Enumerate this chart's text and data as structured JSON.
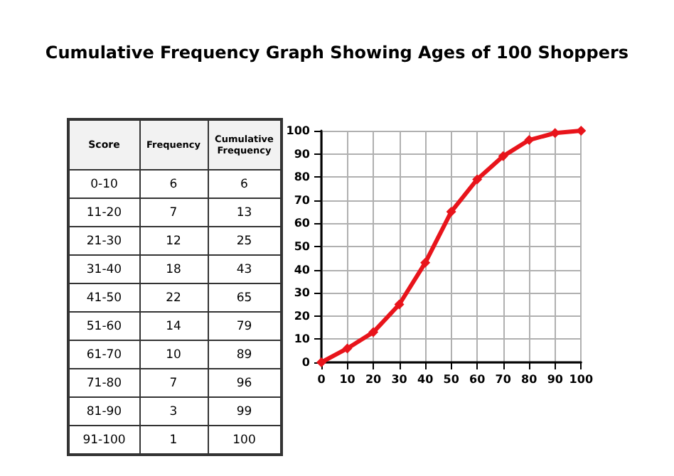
{
  "chart_data": [
    {
      "type": "other",
      "xlabel": "Score",
      "categories": [
        "0-10",
        "11-20",
        "21-30",
        "31-40",
        "41-50",
        "51-60",
        "61-70",
        "71-80",
        "81-90",
        "91-100"
      ],
      "data_labels": true,
      "series": [
        {
          "name": "Frequency",
          "values": [
            6,
            7,
            12,
            18,
            22,
            14,
            10,
            7,
            3,
            1
          ]
        },
        {
          "name": "Cumulative Frequency",
          "values": [
            6,
            13,
            25,
            43,
            65,
            79,
            89,
            96,
            99,
            100
          ]
        }
      ]
    },
    {
      "type": "line",
      "title": "Cumulative Frequency Graph Showing Ages of 100 Shoppers",
      "x": [
        0,
        10,
        20,
        30,
        40,
        50,
        60,
        70,
        80,
        90,
        100
      ],
      "series": [
        {
          "color": "#e8141b",
          "values": [
            0,
            6,
            13,
            25,
            43,
            65,
            79,
            89,
            96,
            99,
            100
          ]
        }
      ],
      "xlim": [
        0,
        100
      ],
      "xticks": [
        0,
        10,
        20,
        30,
        40,
        50,
        60,
        70,
        80,
        90,
        100
      ],
      "ylim": [
        0,
        100
      ],
      "yticks": [
        0,
        10,
        20,
        30,
        40,
        50,
        60,
        70,
        80,
        90,
        100
      ],
      "grid": true,
      "marker": "diamond",
      "line_style": "solid"
    }
  ]
}
